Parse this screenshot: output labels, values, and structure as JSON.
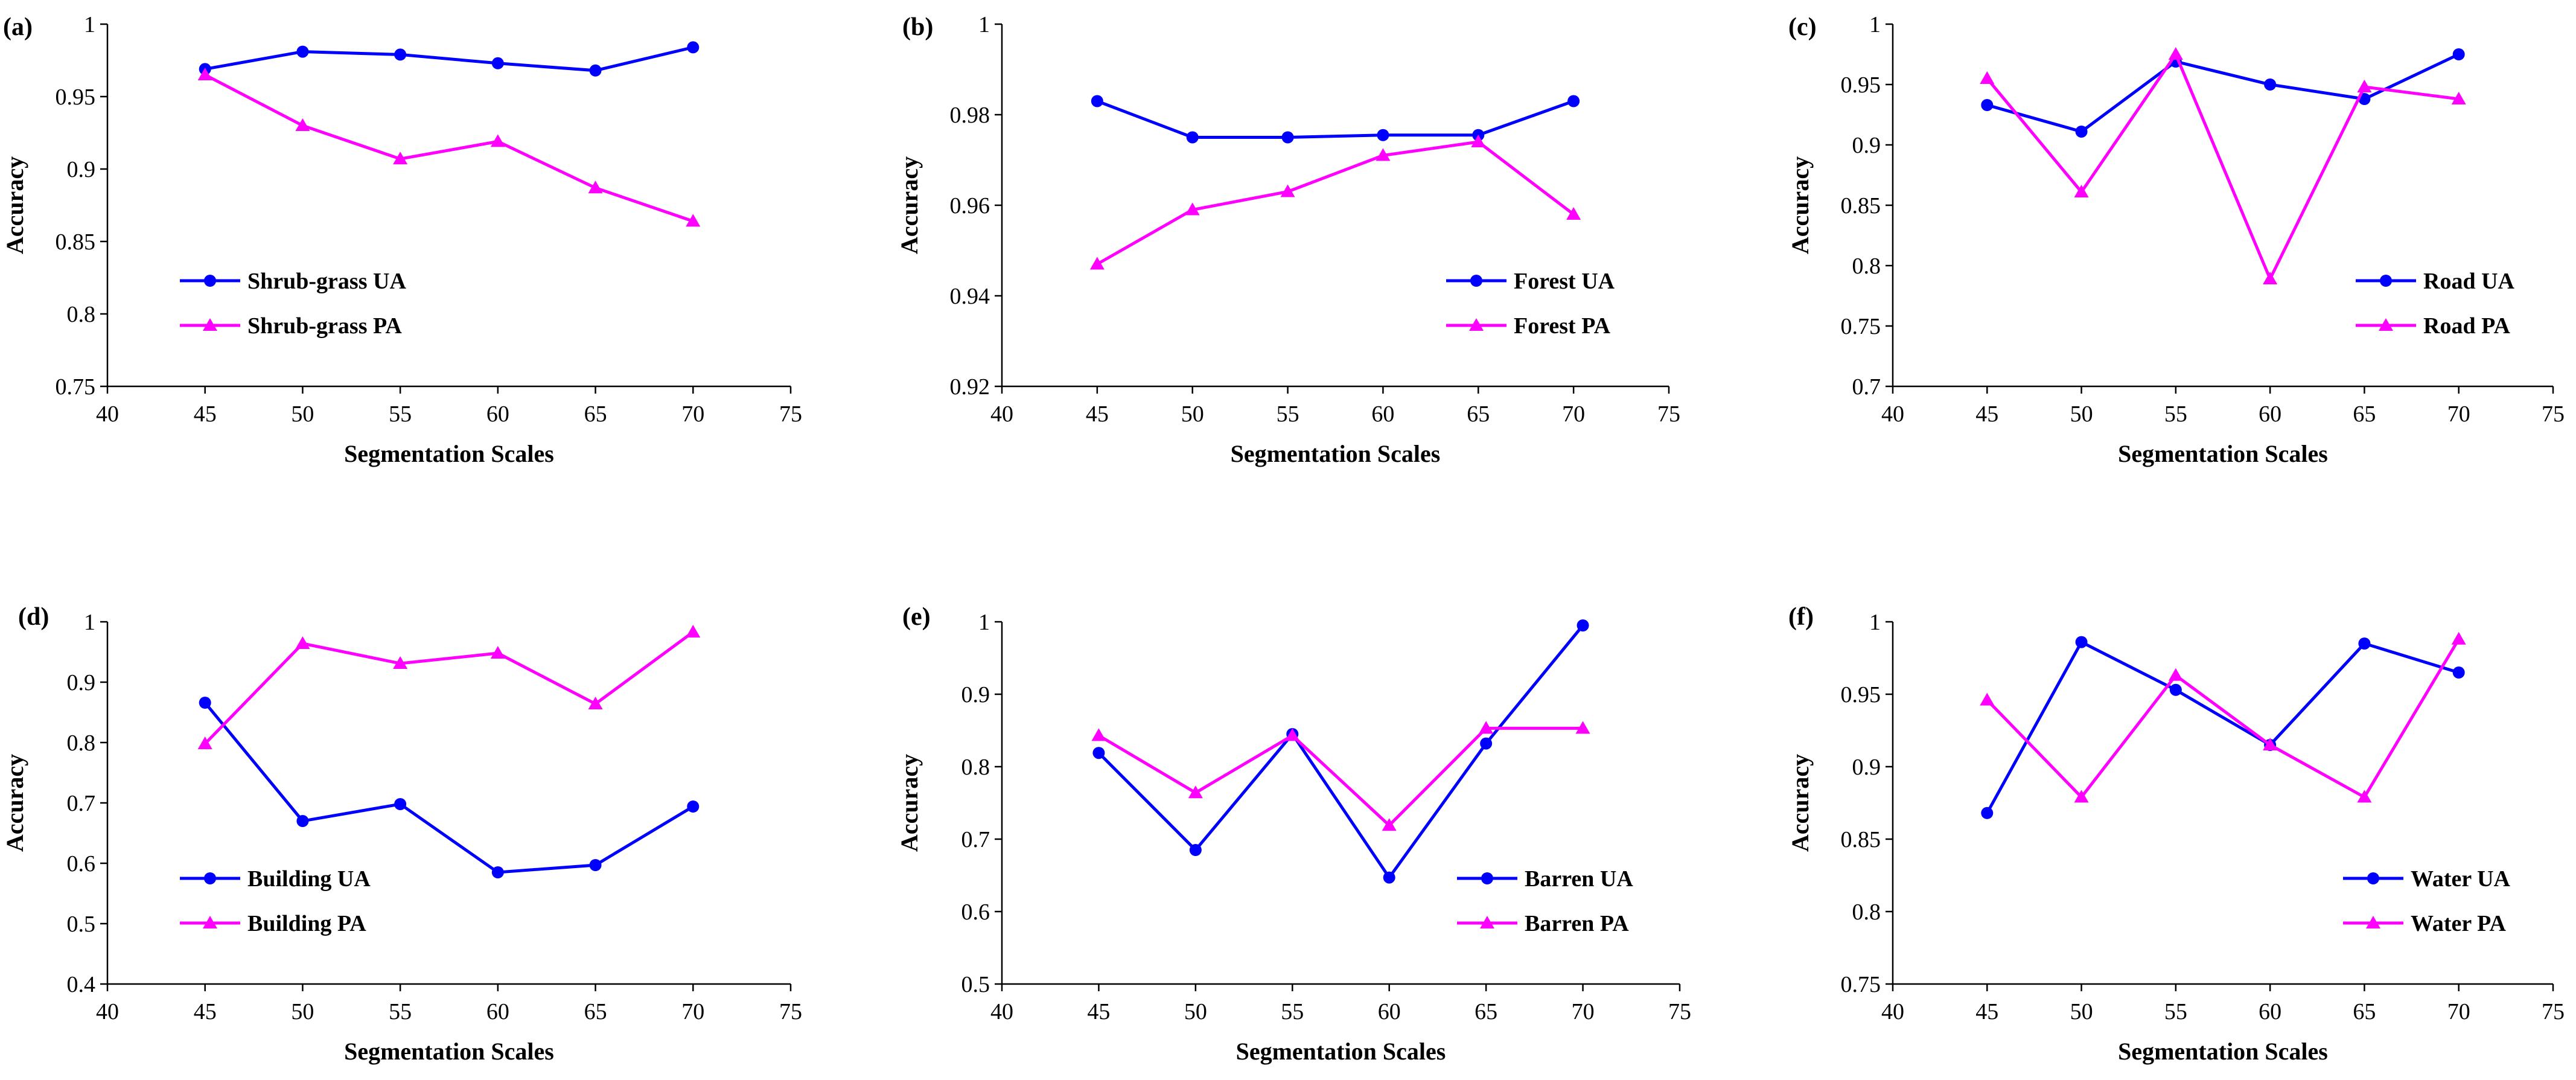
{
  "colors": {
    "ua": "#0000ff",
    "pa": "#ff00ff",
    "axis": "#000000"
  },
  "chart_data": [
    {
      "type": "line",
      "panel": "(a)",
      "xlabel": "Segmentation Scales",
      "ylabel": "Accuracy",
      "xlim": [
        40,
        75
      ],
      "ylim": [
        0.75,
        1
      ],
      "xticks": [
        "40",
        "45",
        "50",
        "55",
        "60",
        "65",
        "70",
        "75"
      ],
      "yticks": [
        "0.75",
        "0.8",
        "0.85",
        "0.9",
        "0.95",
        "1"
      ],
      "x": [
        45,
        50,
        55,
        60,
        65,
        70
      ],
      "legend_position": "bottom-left",
      "series": [
        {
          "name": "Shrub-grass UA",
          "marker": "circle",
          "values": [
            0.969,
            0.981,
            0.979,
            0.973,
            0.968,
            0.984
          ]
        },
        {
          "name": "Shrub-grass PA",
          "marker": "triangle",
          "values": [
            0.965,
            0.93,
            0.907,
            0.919,
            0.887,
            0.864
          ]
        }
      ]
    },
    {
      "type": "line",
      "panel": "(b)",
      "xlabel": "Segmentation Scales",
      "ylabel": "Accuracy",
      "xlim": [
        40,
        75
      ],
      "ylim": [
        0.92,
        1
      ],
      "xticks": [
        "40",
        "45",
        "50",
        "55",
        "60",
        "65",
        "70",
        "75"
      ],
      "yticks": [
        "0.92",
        "0.94",
        "0.96",
        "0.98",
        "1"
      ],
      "x": [
        45,
        50,
        55,
        60,
        65,
        70
      ],
      "legend_position": "bottom-right",
      "series": [
        {
          "name": "Forest UA",
          "marker": "circle",
          "values": [
            0.983,
            0.975,
            0.975,
            0.9755,
            0.9755,
            0.983
          ]
        },
        {
          "name": "Forest PA",
          "marker": "triangle",
          "values": [
            0.947,
            0.959,
            0.963,
            0.971,
            0.974,
            0.958
          ]
        }
      ]
    },
    {
      "type": "line",
      "panel": "(c)",
      "xlabel": "Segmentation Scales",
      "ylabel": "Accuracy",
      "xlim": [
        40,
        75
      ],
      "ylim": [
        0.7,
        1
      ],
      "xticks": [
        "40",
        "45",
        "50",
        "55",
        "60",
        "65",
        "70",
        "75"
      ],
      "yticks": [
        "0.7",
        "0.75",
        "0.8",
        "0.85",
        "0.9",
        "0.95",
        "1"
      ],
      "x": [
        45,
        50,
        55,
        60,
        65,
        70
      ],
      "legend_position": "bottom-right",
      "series": [
        {
          "name": "Road UA",
          "marker": "circle",
          "values": [
            0.933,
            0.911,
            0.969,
            0.95,
            0.938,
            0.975
          ]
        },
        {
          "name": "Road PA",
          "marker": "triangle",
          "values": [
            0.955,
            0.861,
            0.975,
            0.789,
            0.948,
            0.938
          ]
        }
      ]
    },
    {
      "type": "line",
      "panel": "(d)",
      "xlabel": "Segmentation Scales",
      "ylabel": "Accuracy",
      "xlim": [
        40,
        75
      ],
      "ylim": [
        0.4,
        1
      ],
      "xticks": [
        "40",
        "45",
        "50",
        "55",
        "60",
        "65",
        "70",
        "75"
      ],
      "yticks": [
        "0.4",
        "0.5",
        "0.6",
        "0.7",
        "0.8",
        "0.9",
        "1"
      ],
      "x": [
        45,
        50,
        55,
        60,
        65,
        70
      ],
      "legend_position": "bottom-left",
      "series": [
        {
          "name": "Building UA",
          "marker": "circle",
          "values": [
            0.866,
            0.67,
            0.698,
            0.585,
            0.597,
            0.694
          ]
        },
        {
          "name": "Building PA",
          "marker": "triangle",
          "values": [
            0.798,
            0.964,
            0.931,
            0.948,
            0.864,
            0.983
          ]
        }
      ]
    },
    {
      "type": "line",
      "panel": "(e)",
      "xlabel": "Segmentation Scales",
      "ylabel": "Accuracy",
      "xlim": [
        40,
        75
      ],
      "ylim": [
        0.5,
        1
      ],
      "xticks": [
        "40",
        "45",
        "50",
        "55",
        "60",
        "65",
        "70",
        "75"
      ],
      "yticks": [
        "0.5",
        "0.6",
        "0.7",
        "0.8",
        "0.9",
        "1"
      ],
      "x": [
        45,
        50,
        55,
        60,
        65,
        70
      ],
      "legend_position": "bottom-right",
      "series": [
        {
          "name": "Barren UA",
          "marker": "circle",
          "values": [
            0.819,
            0.685,
            0.845,
            0.647,
            0.832,
            0.995
          ]
        },
        {
          "name": "Barren PA",
          "marker": "triangle",
          "values": [
            0.843,
            0.764,
            0.843,
            0.719,
            0.853,
            0.853
          ]
        }
      ]
    },
    {
      "type": "line",
      "panel": "(f)",
      "xlabel": "Segmentation Scales",
      "ylabel": "Accuracy",
      "xlim": [
        40,
        75
      ],
      "ylim": [
        0.75,
        1
      ],
      "xticks": [
        "40",
        "45",
        "50",
        "55",
        "60",
        "65",
        "70",
        "75"
      ],
      "yticks": [
        "0.75",
        "0.8",
        "0.85",
        "0.9",
        "0.95",
        "1"
      ],
      "x": [
        45,
        50,
        55,
        60,
        65,
        70
      ],
      "legend_position": "bottom-right",
      "series": [
        {
          "name": "Water UA",
          "marker": "circle",
          "values": [
            0.868,
            0.986,
            0.953,
            0.915,
            0.985,
            0.965
          ]
        },
        {
          "name": "Water PA",
          "marker": "triangle",
          "values": [
            0.946,
            0.879,
            0.963,
            0.915,
            0.879,
            0.988
          ]
        }
      ]
    }
  ]
}
